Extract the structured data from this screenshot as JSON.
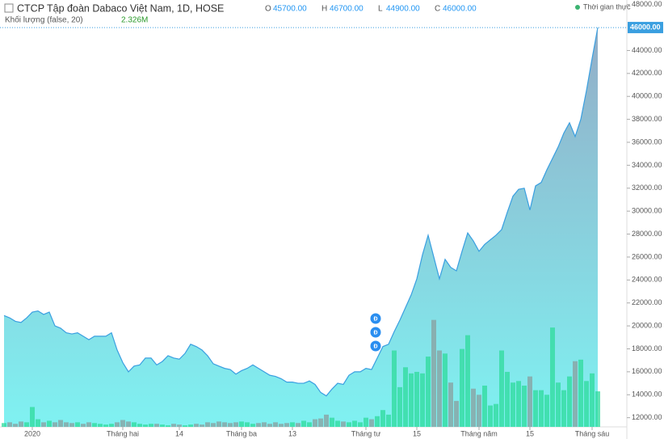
{
  "chart_data": {
    "type": "area",
    "title": "CTCP Tập đoàn Dabaco Việt Nam, 1D, HOSE",
    "ohlc": [
      {
        "key": "O",
        "value": "45700.00"
      },
      {
        "key": "H",
        "value": "46700.00"
      },
      {
        "key": "L",
        "value": "44900.00"
      },
      {
        "key": "C",
        "value": "46000.00"
      }
    ],
    "volume_title": "Khối lượng (false, 20)",
    "volume_last": "2.326M",
    "realtime": "Thời gian thực",
    "line_color": "#3a9fe0",
    "fill_top": "#93adc7",
    "fill_bottom": "#7ff2f2",
    "up_color": "#2edb9b",
    "down_color": "#8a9e9e",
    "values": [
      20900,
      20700,
      20400,
      20300,
      20700,
      21200,
      21300,
      21000,
      21200,
      20000,
      19800,
      19400,
      19300,
      19400,
      19100,
      18800,
      19100,
      19100,
      19100,
      19400,
      17900,
      16800,
      16000,
      16500,
      16600,
      17200,
      17200,
      16600,
      16900,
      17400,
      17200,
      17100,
      17600,
      18400,
      18200,
      17900,
      17400,
      16700,
      16500,
      16300,
      16200,
      15800,
      16100,
      16300,
      16600,
      16300,
      16000,
      15700,
      15600,
      15400,
      15100,
      15100,
      15000,
      15000,
      15200,
      14900,
      14200,
      13900,
      14500,
      15000,
      14900,
      15700,
      16000,
      16000,
      16300,
      16200,
      17200,
      18200,
      18400,
      19500,
      20500,
      21600,
      22700,
      24100,
      26200,
      27900,
      26000,
      24100,
      25800,
      25100,
      24800,
      26500,
      28100,
      27400,
      26500,
      27100,
      27500,
      27900,
      28400,
      29900,
      31300,
      31900,
      32000,
      30100,
      32200,
      32500,
      33600,
      34600,
      35600,
      36800,
      37700,
      36500,
      38000,
      40500,
      43300,
      46000
    ],
    "volume": [
      0.25,
      0.3,
      0.2,
      0.35,
      0.3,
      1.3,
      0.5,
      0.3,
      0.4,
      0.3,
      0.45,
      0.3,
      0.25,
      0.3,
      0.2,
      0.3,
      0.25,
      0.2,
      0.15,
      0.2,
      0.3,
      0.45,
      0.35,
      0.3,
      0.2,
      0.15,
      0.2,
      0.2,
      0.15,
      0.1,
      0.2,
      0.15,
      0.1,
      0.15,
      0.2,
      0.15,
      0.3,
      0.25,
      0.35,
      0.3,
      0.25,
      0.3,
      0.35,
      0.3,
      0.2,
      0.25,
      0.3,
      0.2,
      0.3,
      0.2,
      0.25,
      0.3,
      0.25,
      0.4,
      0.3,
      0.5,
      0.55,
      0.8,
      0.6,
      0.4,
      0.35,
      0.3,
      0.4,
      0.3,
      0.6,
      0.5,
      0.7,
      1.1,
      0.8,
      5.0,
      2.6,
      3.9,
      3.5,
      3.6,
      3.5,
      4.6,
      7.0,
      5.0,
      4.8,
      2.9,
      1.7,
      5.1,
      6.0,
      2.5,
      2.1,
      2.7,
      1.4,
      1.5,
      5.0,
      3.6,
      2.9,
      3.0,
      2.7,
      3.3,
      2.4,
      2.4,
      2.1,
      6.5,
      2.9,
      2.4,
      3.3,
      4.3,
      4.4,
      3.0,
      3.5,
      2.326
    ],
    "vlim": [
      0,
      10
    ],
    "ylim": [
      11200,
      48400
    ],
    "yticks": [
      {
        "value": 12000,
        "label": "12000.00"
      },
      {
        "value": 14000,
        "label": "14000.00"
      },
      {
        "value": 16000,
        "label": "16000.00"
      },
      {
        "value": 18000,
        "label": "18000.00"
      },
      {
        "value": 20000,
        "label": "20000.00"
      },
      {
        "value": 22000,
        "label": "22000.00"
      },
      {
        "value": 24000,
        "label": "24000.00"
      },
      {
        "value": 26000,
        "label": "26000.00"
      },
      {
        "value": 28000,
        "label": "28000.00"
      },
      {
        "value": 30000,
        "label": "30000.00"
      },
      {
        "value": 32000,
        "label": "32000.00"
      },
      {
        "value": 34000,
        "label": "34000.00"
      },
      {
        "value": 36000,
        "label": "36000.00"
      },
      {
        "value": 38000,
        "label": "38000.00"
      },
      {
        "value": 40000,
        "label": "40000.00"
      },
      {
        "value": 42000,
        "label": "42000.00"
      },
      {
        "value": 44000,
        "label": "44000.00"
      },
      {
        "value": 48000,
        "label": "48000.00"
      }
    ],
    "last_price": {
      "value": 46000,
      "label": "46000.00"
    },
    "xticks": [
      {
        "value": 5,
        "label": "2020"
      },
      {
        "value": 21,
        "label": "Tháng hai"
      },
      {
        "value": 31,
        "label": "14"
      },
      {
        "value": 42,
        "label": "Tháng ba"
      },
      {
        "value": 51,
        "label": "13"
      },
      {
        "value": 64,
        "label": "Tháng tư"
      },
      {
        "value": 73,
        "label": "15"
      },
      {
        "value": 84,
        "label": "Tháng năm"
      },
      {
        "value": 93,
        "label": "15"
      },
      {
        "value": 104,
        "label": "Tháng sáu"
      }
    ],
    "events": [
      {
        "index": 66,
        "label": "Đ"
      },
      {
        "index": 66,
        "label": "Đ"
      },
      {
        "index": 66,
        "label": "Đ"
      }
    ]
  }
}
